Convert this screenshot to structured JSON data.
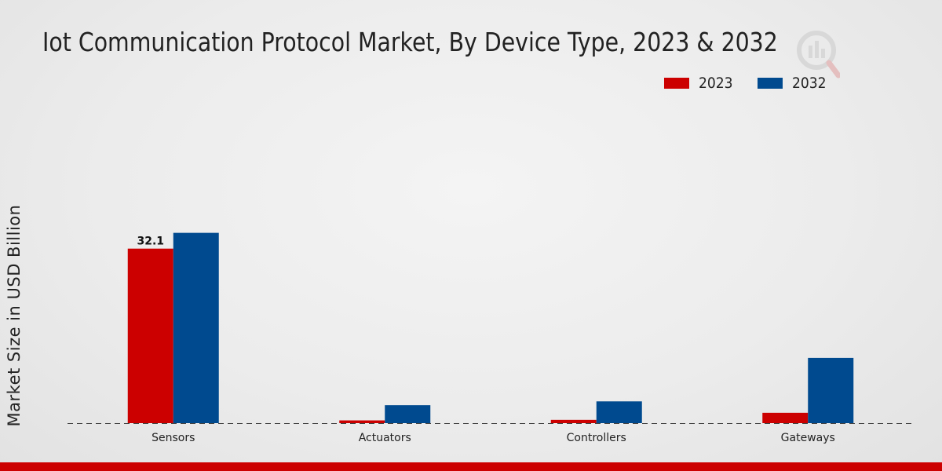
{
  "colors": {
    "series_2023": "#cc0000",
    "series_2032": "#004a8f",
    "footer": "#cc0000",
    "axis": "#444444"
  },
  "legend": {
    "items": [
      {
        "label": "2023",
        "color": "#cc0000"
      },
      {
        "label": "2032",
        "color": "#004a8f"
      }
    ]
  },
  "chart_data": {
    "type": "bar",
    "title": "Iot Communication Protocol Market, By Device Type, 2023 & 2032",
    "xlabel": "",
    "ylabel": "Market Size in USD Billion",
    "categories": [
      "Sensors",
      "Actuators",
      "Controllers",
      "Gateways"
    ],
    "series": [
      {
        "name": "2023",
        "values": [
          32.1,
          0.5,
          0.6,
          1.9
        ]
      },
      {
        "name": "2032",
        "values": [
          35.0,
          3.3,
          4.0,
          12.0
        ]
      }
    ],
    "data_labels": [
      {
        "series": "2023",
        "category": "Sensors",
        "text": "32.1"
      }
    ],
    "ylim": [
      0,
      40
    ],
    "grid": false,
    "legend_position": "top-right"
  }
}
